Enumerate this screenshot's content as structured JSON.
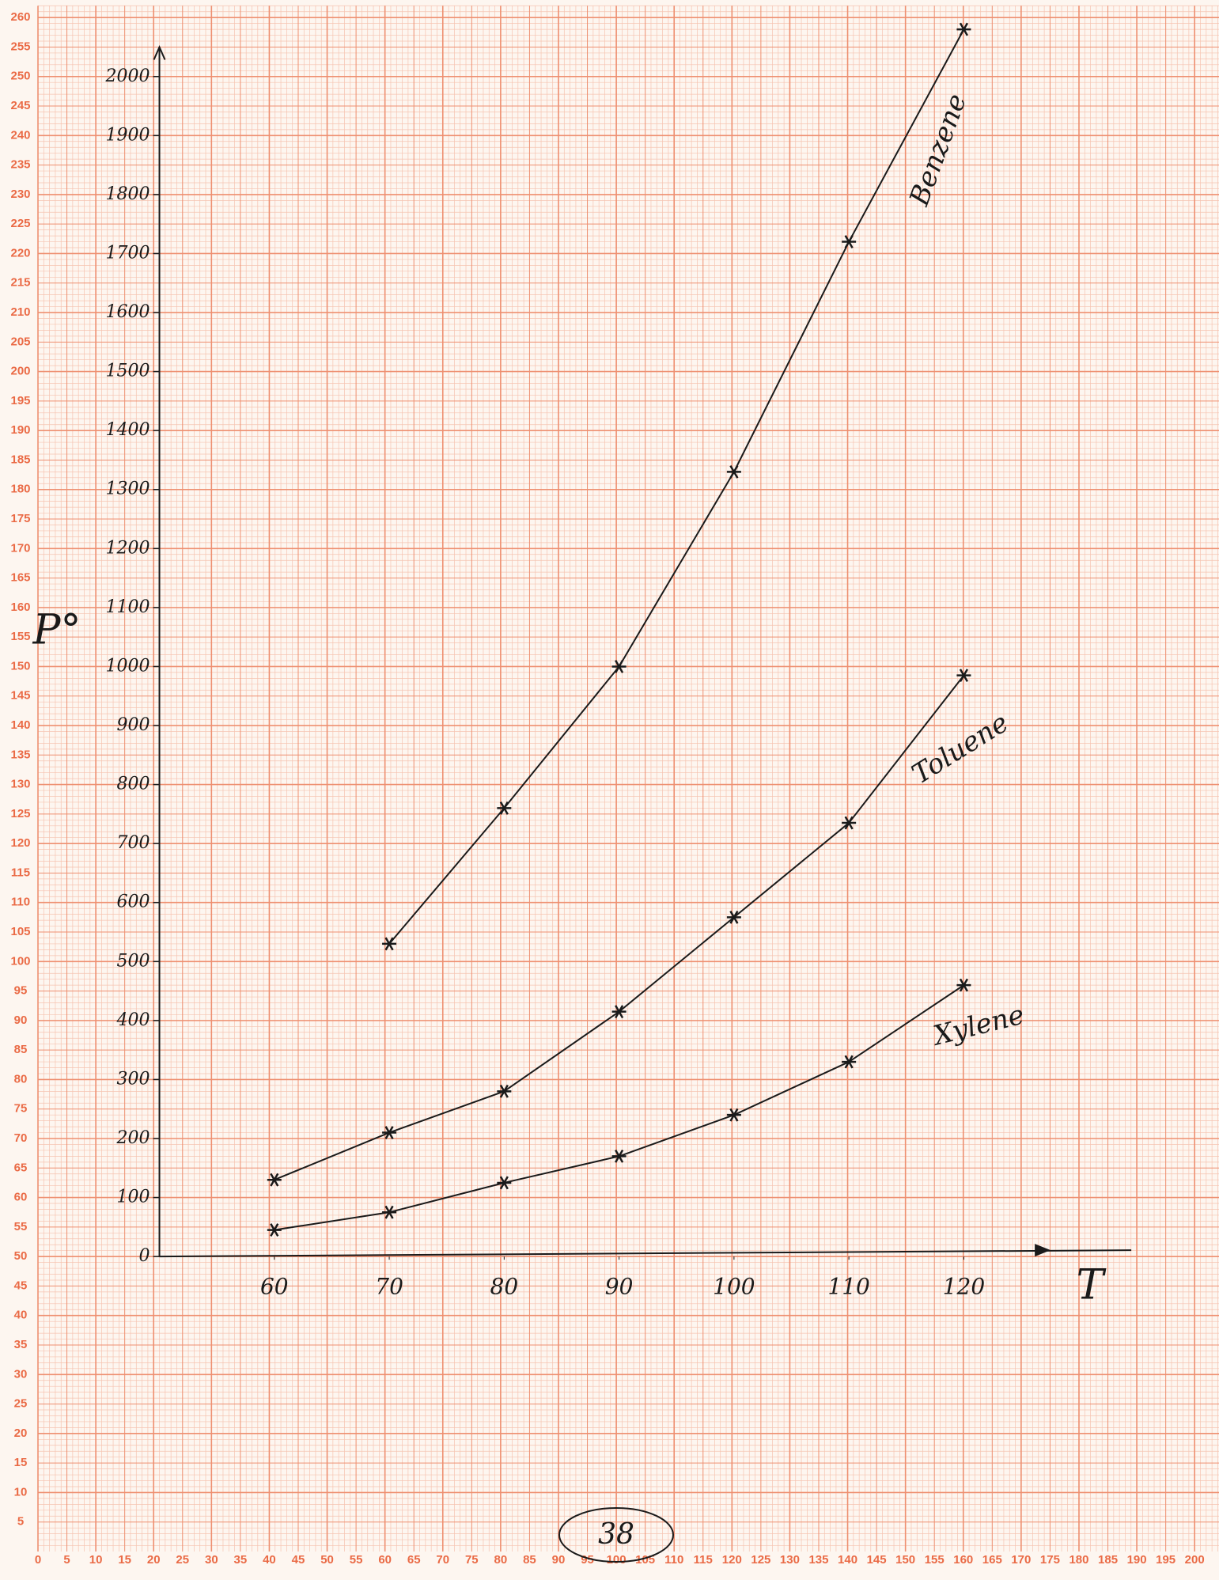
{
  "graph_paper": {
    "xticks": [
      0,
      5,
      10,
      15,
      20,
      25,
      30,
      35,
      40,
      45,
      50,
      55,
      60,
      65,
      70,
      75,
      80,
      85,
      90,
      95,
      100,
      105,
      110,
      115,
      120,
      125,
      130,
      135,
      140,
      145,
      150,
      155,
      160,
      165,
      170,
      175,
      180,
      185,
      190,
      195,
      200
    ],
    "yticks": [
      5,
      10,
      15,
      20,
      25,
      30,
      35,
      40,
      45,
      50,
      55,
      60,
      65,
      70,
      75,
      80,
      85,
      90,
      95,
      100,
      105,
      110,
      115,
      120,
      125,
      130,
      135,
      140,
      145,
      150,
      155,
      160,
      165,
      170,
      175,
      180,
      185,
      190,
      195,
      200,
      205,
      210,
      215,
      220,
      225,
      230,
      235,
      240,
      245,
      250,
      255,
      260
    ]
  },
  "page_number": "38",
  "chart_data": {
    "type": "line",
    "xlabel": "T",
    "ylabel": "P°",
    "x": [
      60,
      70,
      80,
      90,
      100,
      110,
      120
    ],
    "xlim": [
      50,
      127
    ],
    "ylim": [
      0,
      2050
    ],
    "xticks": [
      60,
      70,
      80,
      90,
      100,
      110,
      120
    ],
    "yticks": [
      0,
      100,
      200,
      300,
      400,
      500,
      600,
      700,
      800,
      900,
      1000,
      1100,
      1200,
      1300,
      1400,
      1500,
      1600,
      1700,
      1800,
      1900,
      2000
    ],
    "series": [
      {
        "name": "Benzene",
        "color": "#1a1a1a",
        "values": [
          null,
          530,
          760,
          1000,
          1330,
          1720,
          2080
        ]
      },
      {
        "name": "Toluene",
        "color": "#1a1a1a",
        "values": [
          130,
          210,
          280,
          415,
          575,
          735,
          985
        ]
      },
      {
        "name": "Xylene",
        "color": "#1a1a1a",
        "values": [
          45,
          75,
          125,
          170,
          240,
          330,
          460
        ]
      }
    ]
  }
}
